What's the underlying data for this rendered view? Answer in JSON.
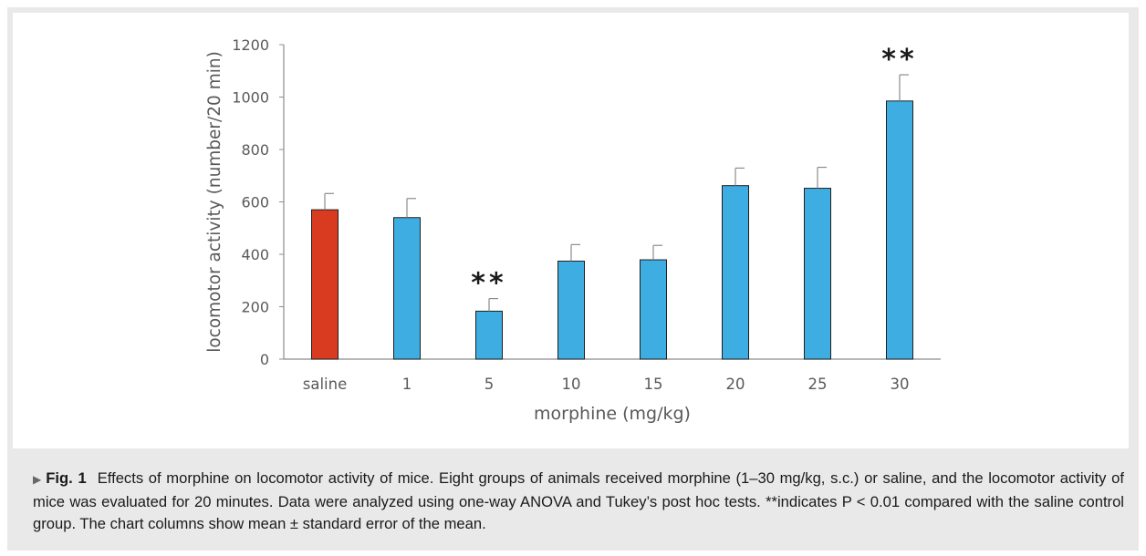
{
  "chart_data": {
    "type": "bar",
    "title": "",
    "xlabel": "morphine (mg/kg)",
    "ylabel": "locomotor activity (number/20 min)",
    "ylim": [
      0,
      1200
    ],
    "yticks": [
      0,
      200,
      400,
      600,
      800,
      1000,
      1200
    ],
    "categories": [
      "saline",
      "1",
      "5",
      "10",
      "15",
      "20",
      "25",
      "30"
    ],
    "values": [
      570,
      540,
      183,
      374,
      379,
      662,
      652,
      985
    ],
    "errors": [
      62,
      73,
      48,
      63,
      55,
      67,
      80,
      100
    ],
    "bar_colors": [
      "#d83b1f",
      "#3eaee2",
      "#3eaee2",
      "#3eaee2",
      "#3eaee2",
      "#3eaee2",
      "#3eaee2",
      "#3eaee2"
    ],
    "significance": [
      "",
      "",
      "**",
      "",
      "",
      "",
      "",
      "**"
    ]
  },
  "caption": {
    "marker": "▶",
    "label": "Fig. 1",
    "text": "Effects of morphine on locomotor activity of mice. Eight groups of animals received morphine (1–30 mg/kg, s.c.) or saline, and the locomotor activity of mice was evaluated for 20 minutes. Data were analyzed using one-way ANOVA and Tukey’s post hoc tests. **indicates P < 0.01 compared with the saline control group. The chart columns show mean ± standard error of the mean."
  },
  "colors": {
    "axis": "#8c8c8c",
    "text": "#595959",
    "panel_bg": "#e9e9e9"
  }
}
